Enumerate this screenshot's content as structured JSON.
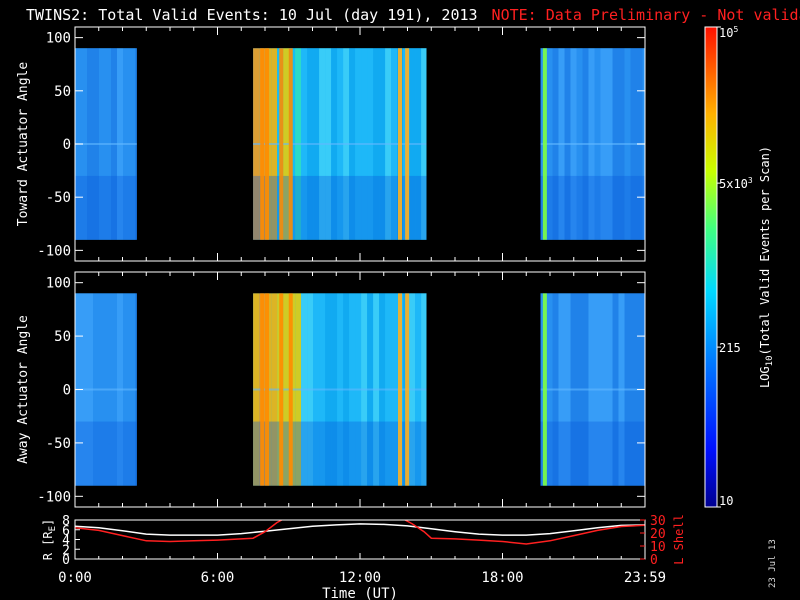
{
  "title": {
    "main": "TWINS2: Total Valid Events: 10 Jul (day 191), 2013",
    "note": "NOTE: Data Preliminary - Not validated"
  },
  "date_stamp": "23 Jul 13",
  "colors": {
    "background": "#000000",
    "axis": "#ffffff",
    "note": "#ff2020",
    "r_line": "#ffffff",
    "lshell_line": "#ff2020"
  },
  "chart_data": [
    {
      "id": "toward",
      "type": "heatmap",
      "ylabel": "Toward Actuator Angle",
      "ylim": [
        -110,
        110
      ],
      "yticks": [
        "100",
        "50",
        "0",
        "-50",
        "-100"
      ],
      "ytick_values": [
        100,
        50,
        0,
        -50,
        -100
      ],
      "xlim": [
        0,
        24
      ],
      "data_angle_range": [
        -90,
        90
      ],
      "data_blocks_hours": [
        [
          0.0,
          2.6
        ],
        [
          7.5,
          14.8
        ],
        [
          19.6,
          24.0
        ]
      ],
      "stripes_hours": [
        7.8,
        8.0,
        8.6,
        9.0,
        13.6,
        13.9,
        19.7
      ]
    },
    {
      "id": "away",
      "type": "heatmap",
      "ylabel": "Away Actuator Angle",
      "ylim": [
        -110,
        110
      ],
      "yticks": [
        "100",
        "50",
        "0",
        "-50",
        "-100"
      ],
      "ytick_values": [
        100,
        50,
        0,
        -50,
        -100
      ],
      "xlim": [
        0,
        24
      ],
      "data_angle_range": [
        -90,
        90
      ],
      "data_blocks_hours": [
        [
          0.0,
          2.6
        ],
        [
          7.5,
          14.8
        ],
        [
          19.6,
          24.0
        ]
      ],
      "stripes_hours": [
        7.8,
        8.0,
        8.6,
        9.0,
        13.6,
        13.9,
        19.7
      ]
    },
    {
      "id": "orbit",
      "type": "line",
      "xlabel": "Time (UT)",
      "xticks": [
        "0:00",
        "6:00",
        "12:00",
        "18:00",
        "23:59"
      ],
      "xtick_values": [
        0,
        6,
        12,
        18,
        24
      ],
      "ylabel_left": "R [R",
      "ylabel_left_sub": "E",
      "ylabel_left_close": "]",
      "ylim_left": [
        0,
        8
      ],
      "yticks_left": [
        "0",
        "2",
        "4",
        "6",
        "8"
      ],
      "ylabel_right": "L Shell",
      "ylim_right": [
        0,
        30
      ],
      "yticks_right": [
        "0",
        "10",
        "20",
        "30"
      ],
      "series": [
        {
          "axis": "left",
          "color": "#ffffff",
          "x": [
            0,
            1,
            2,
            3,
            4,
            5,
            6,
            7,
            8,
            9,
            10,
            11,
            12,
            13,
            14,
            15,
            16,
            17,
            18,
            19,
            20,
            21,
            22,
            23,
            24
          ],
          "y": [
            6.7,
            6.4,
            5.8,
            5.1,
            4.9,
            4.9,
            4.9,
            5.2,
            5.7,
            6.2,
            6.7,
            7.0,
            7.2,
            7.1,
            6.8,
            6.2,
            5.6,
            5.1,
            4.9,
            4.9,
            5.2,
            5.8,
            6.4,
            6.9,
            7.0
          ]
        },
        {
          "axis": "right",
          "color": "#ff2020",
          "x": [
            0,
            1,
            2,
            3,
            4,
            5,
            6,
            7,
            7.5,
            8,
            8.5,
            8.8,
            13.8,
            14.2,
            14.7,
            15,
            16,
            17,
            18,
            19,
            20,
            21,
            22,
            23,
            24
          ],
          "y": [
            24,
            22,
            18,
            14,
            13.5,
            14,
            14.5,
            15.5,
            16,
            21,
            28,
            31,
            31,
            27,
            21,
            16,
            15.5,
            14.5,
            13.5,
            11.5,
            14,
            18,
            22,
            25,
            26
          ]
        }
      ]
    }
  ],
  "colorbar": {
    "label": "LOG",
    "label_sub": "10",
    "label_rest": "(Total Valid Events per Scan)",
    "tick_labels": [
      {
        "value": 100000,
        "base": "10",
        "exp": "5"
      },
      {
        "value": 5000,
        "base": "5x10",
        "exp": "3"
      },
      {
        "value": 215,
        "base": "215",
        "exp": ""
      },
      {
        "value": 10,
        "base": "10",
        "exp": ""
      }
    ],
    "range": [
      10,
      100000
    ],
    "scale": "log"
  }
}
